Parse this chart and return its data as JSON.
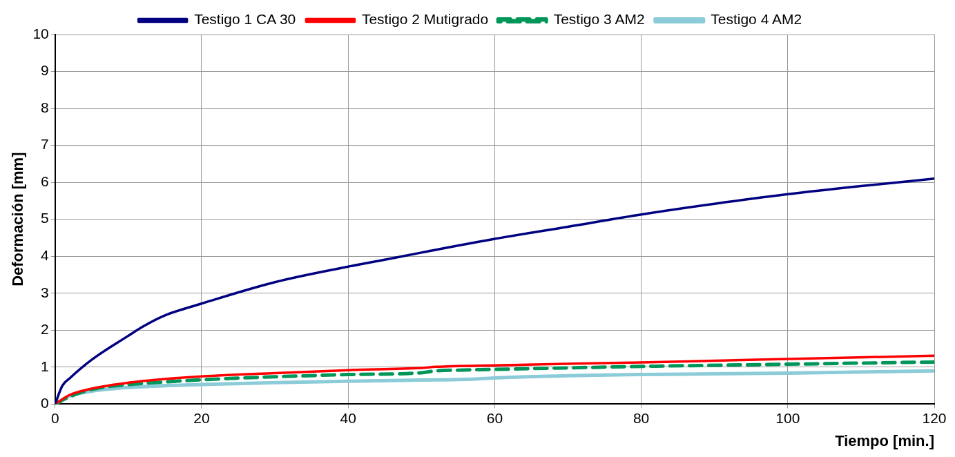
{
  "chart_data": {
    "type": "line",
    "xlabel": "Tiempo [min.]",
    "ylabel": "Deformación [mm]",
    "xlim": [
      0,
      120
    ],
    "xticks": [
      0,
      20,
      40,
      60,
      80,
      100,
      120
    ],
    "ylim": [
      0,
      10
    ],
    "yticks": [
      0,
      1,
      2,
      3,
      4,
      5,
      6,
      7,
      8,
      9,
      10
    ],
    "grid": true,
    "legend": "top",
    "marker": "none",
    "series": [
      {
        "name": "Testigo 1 CA 30",
        "color": "#000080",
        "line_style": "solid",
        "x": [
          0,
          1,
          2,
          5,
          10,
          12,
          15,
          20,
          30,
          40,
          44,
          50,
          60,
          70,
          80,
          90,
          100,
          110,
          120
        ],
        "values": [
          0,
          0.5,
          0.7,
          1.2,
          1.85,
          2.1,
          2.4,
          2.72,
          3.3,
          3.72,
          3.87,
          4.1,
          4.47,
          4.8,
          5.13,
          5.42,
          5.68,
          5.9,
          6.1
        ]
      },
      {
        "name": "Testigo 2 Mutigrado",
        "color": "#ff0000",
        "line_style": "solid",
        "x": [
          0,
          2,
          5,
          10,
          15,
          20,
          30,
          40,
          50,
          52,
          60,
          80,
          100,
          120
        ],
        "values": [
          0,
          0.25,
          0.42,
          0.58,
          0.68,
          0.75,
          0.84,
          0.92,
          0.98,
          1.01,
          1.05,
          1.13,
          1.22,
          1.31
        ]
      },
      {
        "name": "Testigo 3 AM2",
        "color": "#00965a",
        "line_style": "dashed",
        "x": [
          0,
          2,
          5,
          10,
          15,
          20,
          30,
          40,
          50,
          52,
          55,
          60,
          80,
          100,
          120
        ],
        "values": [
          0,
          0.2,
          0.4,
          0.53,
          0.6,
          0.66,
          0.74,
          0.8,
          0.85,
          0.9,
          0.92,
          0.94,
          1.02,
          1.08,
          1.14
        ]
      },
      {
        "name": "Testigo 4 AM2",
        "color": "#8ccbd8",
        "line_style": "solid",
        "x": [
          0,
          2,
          5,
          10,
          20,
          30,
          40,
          50,
          56,
          60,
          70,
          80,
          100,
          120
        ],
        "values": [
          0,
          0.22,
          0.35,
          0.45,
          0.53,
          0.58,
          0.62,
          0.65,
          0.67,
          0.71,
          0.77,
          0.8,
          0.84,
          0.9
        ]
      }
    ]
  }
}
